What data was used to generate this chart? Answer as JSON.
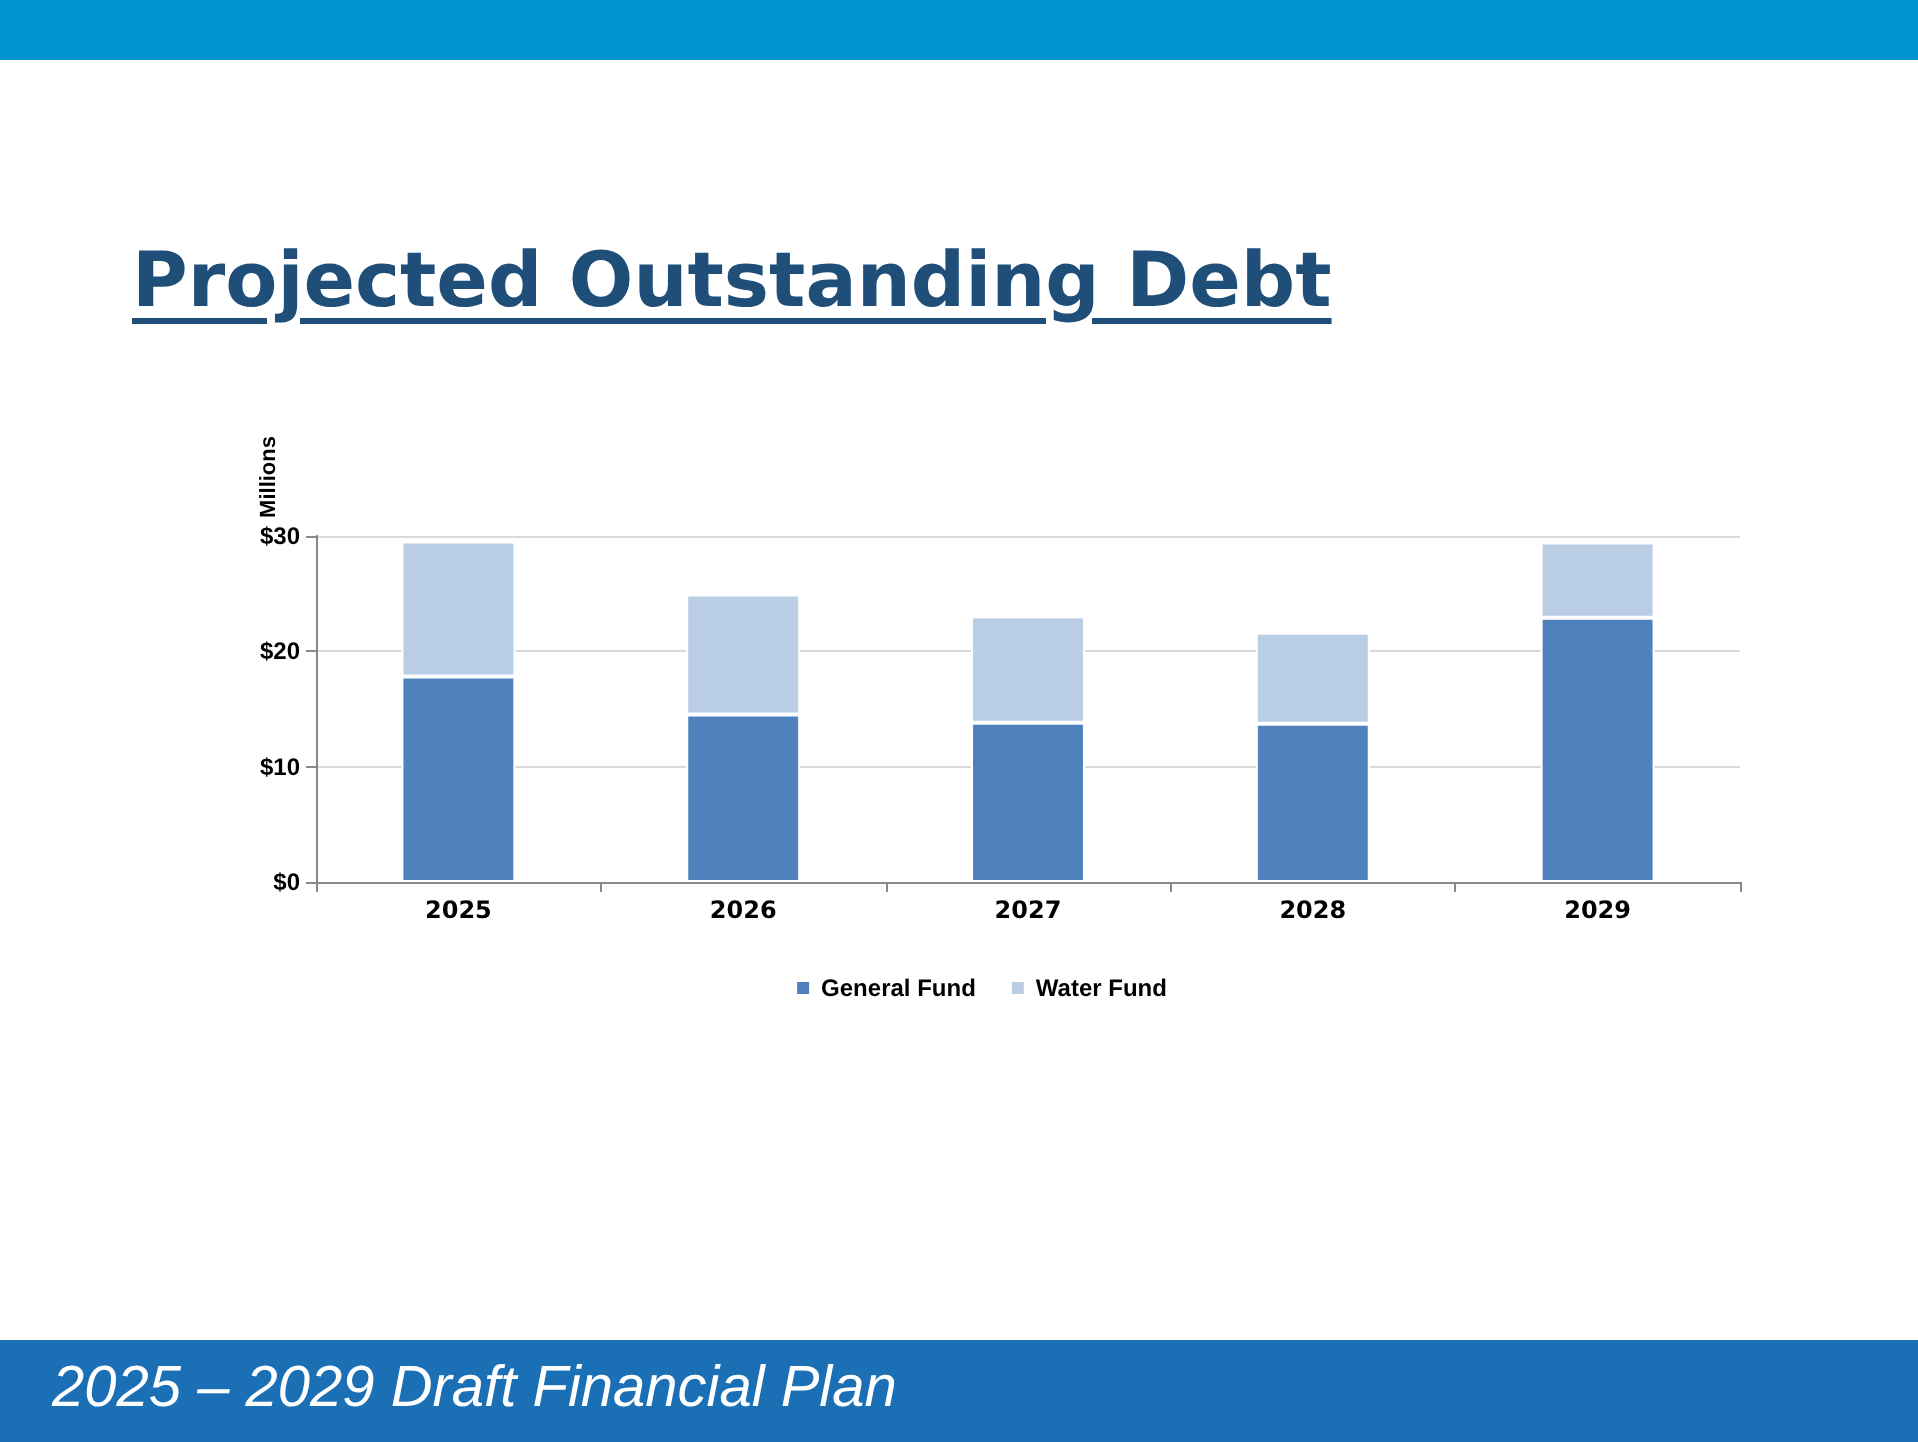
{
  "chart_data": {
    "type": "bar",
    "title": "Projected Outstanding Debt",
    "ylabel": "Millions",
    "annotations": [
      "2025 – 2029 Draft Financial Plan"
    ],
    "categories": [
      "2025",
      "2026",
      "2027",
      "2028",
      "2029"
    ],
    "series": [
      {
        "name": "General Fund",
        "color": "#4f81bd",
        "values": [
          17.8,
          14.5,
          13.8,
          13.7,
          22.9
        ]
      },
      {
        "name": "Water Fund",
        "color": "#b9cde5",
        "values": [
          11.7,
          10.4,
          9.2,
          7.9,
          6.5
        ]
      }
    ],
    "stacked": true,
    "ylim": [
      0,
      30
    ],
    "yticks": [
      {
        "value": 0,
        "label": "$0"
      },
      {
        "value": 10,
        "label": "$10"
      },
      {
        "value": 20,
        "label": "$20"
      },
      {
        "value": 30,
        "label": "$30"
      }
    ],
    "grid": "y",
    "legend": "bottom"
  }
}
